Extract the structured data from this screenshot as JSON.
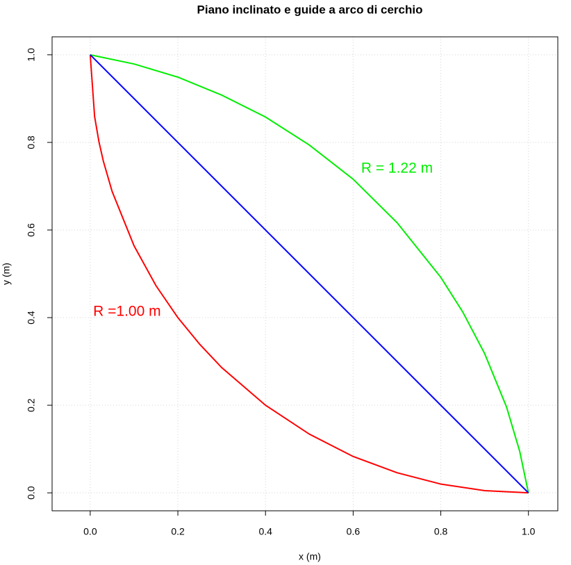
{
  "chart_data": {
    "type": "line",
    "title": "Piano inclinato e guide a arco di cerchio",
    "xlabel": "x (m)",
    "ylabel": "y (m)",
    "xlim": [
      -0.087,
      1.067
    ],
    "ylim": [
      -0.041,
      1.041
    ],
    "xticks": [
      {
        "value": 0,
        "label": "0.0"
      },
      {
        "value": 0.2,
        "label": "0.2"
      },
      {
        "value": 0.4,
        "label": "0.4"
      },
      {
        "value": 0.6,
        "label": "0.6"
      },
      {
        "value": 0.8,
        "label": "0.8"
      },
      {
        "value": 1,
        "label": "1.0"
      }
    ],
    "yticks": [
      {
        "value": 0,
        "label": "0.0"
      },
      {
        "value": 0.2,
        "label": "0.2"
      },
      {
        "value": 0.4,
        "label": "0.4"
      },
      {
        "value": 0.6,
        "label": "0.6"
      },
      {
        "value": 0.8,
        "label": "0.8"
      },
      {
        "value": 1,
        "label": "1.0"
      }
    ],
    "grid": true,
    "series": [
      {
        "color": "#ff0000",
        "x": [
          0,
          0.01,
          0.02,
          0.03,
          0.05,
          0.1,
          0.15,
          0.2,
          0.25,
          0.3,
          0.4,
          0.5,
          0.6,
          0.7,
          0.8,
          0.9,
          1.0
        ],
        "values": [
          1,
          0.859,
          0.801,
          0.757,
          0.688,
          0.564,
          0.473,
          0.4,
          0.339,
          0.286,
          0.2,
          0.134,
          0.083,
          0.046,
          0.02,
          0.005,
          0
        ]
      },
      {
        "color": "#00ee00",
        "x": [
          0,
          0.1,
          0.2,
          0.3,
          0.4,
          0.5,
          0.6,
          0.7,
          0.8,
          0.85,
          0.9,
          0.95,
          0.98,
          1.0
        ],
        "values": [
          1,
          0.979,
          0.949,
          0.908,
          0.858,
          0.794,
          0.716,
          0.617,
          0.492,
          0.413,
          0.318,
          0.196,
          0.095,
          0
        ]
      },
      {
        "color": "#0000ff",
        "x": [
          0,
          1
        ],
        "values": [
          1,
          0
        ]
      }
    ],
    "annotations": [
      {
        "text": "R = 1.22 m",
        "x": 0.7,
        "y": 0.74,
        "color": "#00ee00"
      },
      {
        "text": "R =1.00 m",
        "x": 0.084,
        "y": 0.413,
        "color": "#ff0000"
      }
    ]
  }
}
